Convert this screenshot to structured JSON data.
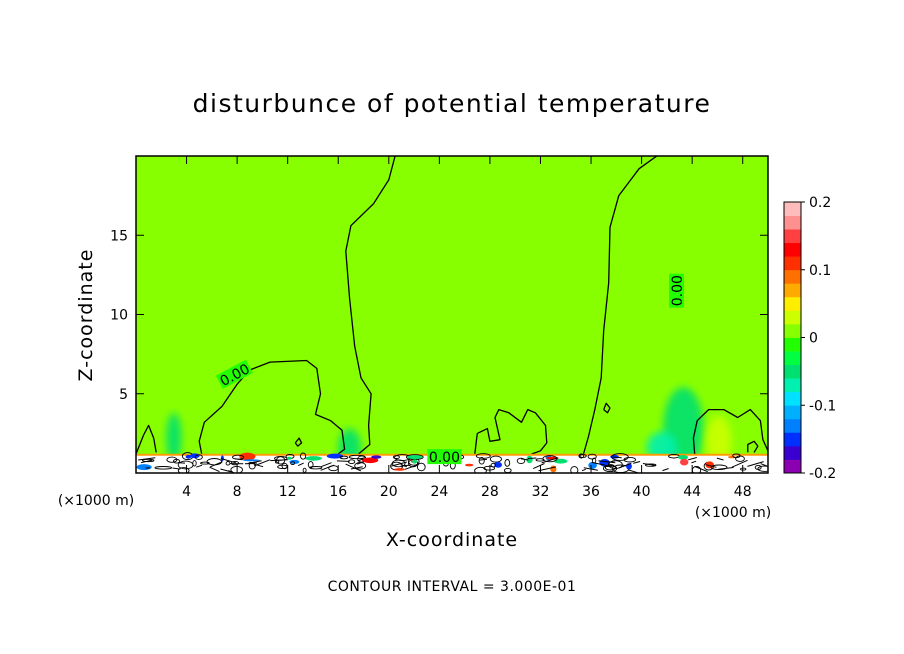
{
  "chart_data": {
    "type": "contour",
    "title": "disturbunce of potential temperature",
    "xlabel": "X-coordinate",
    "ylabel": "Z-coordinate",
    "x_unit": "(×1000 m)",
    "y_unit": "(×1000 m)",
    "xlim": [
      0,
      50
    ],
    "ylim": [
      0,
      20
    ],
    "x_ticks": [
      4,
      8,
      12,
      16,
      20,
      24,
      28,
      32,
      36,
      40,
      44,
      48
    ],
    "y_ticks": [
      5,
      10,
      15
    ],
    "contour_interval_text": "CONTOUR INTERVAL = 3.000E-01",
    "contour_labels": [
      {
        "text": "0.00",
        "x": 7.8,
        "z": 6.2
      },
      {
        "text": "0.00",
        "x": 42.8,
        "z": 11.5
      },
      {
        "text": "0.00",
        "x": 24.4,
        "z": 1.0
      }
    ],
    "colorbar": {
      "range": [
        -0.2,
        0.2
      ],
      "tick_values": [
        0.2,
        0.1,
        0,
        -0.1,
        -0.2
      ],
      "tick_labels": [
        "0.2",
        "0.1",
        "0",
        "-0.1",
        "-0.2"
      ],
      "colors": [
        "#8b00b0",
        "#3a00d0",
        "#0030ff",
        "#0080ff",
        "#00b0ff",
        "#00e0ff",
        "#00f0b0",
        "#00e070",
        "#00ff40",
        "#22ff00",
        "#88ff00",
        "#ccff00",
        "#ffee00",
        "#ffaa00",
        "#ff7000",
        "#ff3000",
        "#ff0000",
        "#ff4040",
        "#ff9090",
        "#ffbcbc"
      ]
    },
    "background_value": 0,
    "zero_contours": [
      {
        "points": [
          [
            0,
            1.2
          ],
          [
            0.6,
            2.4
          ],
          [
            1.0,
            3.0
          ],
          [
            1.4,
            2.2
          ],
          [
            1.6,
            1.3
          ]
        ]
      },
      {
        "points": [
          [
            5.2,
            1.2
          ],
          [
            5.0,
            2.0
          ],
          [
            5.4,
            3.2
          ],
          [
            6.8,
            4.2
          ],
          [
            8.0,
            5.6
          ],
          [
            9.0,
            6.5
          ],
          [
            10.6,
            7.0
          ],
          [
            13.5,
            7.1
          ],
          [
            14.3,
            6.6
          ],
          [
            14.6,
            5.0
          ],
          [
            14.2,
            3.7
          ],
          [
            15.4,
            3.3
          ],
          [
            16.3,
            2.7
          ],
          [
            16.5,
            1.5
          ],
          [
            16.0,
            1.2
          ]
        ]
      },
      {
        "points": [
          [
            17.6,
            1.2
          ],
          [
            18.5,
            1.8
          ],
          [
            18.4,
            3.0
          ],
          [
            18.6,
            5.0
          ],
          [
            17.8,
            6.0
          ],
          [
            17.3,
            8.0
          ],
          [
            16.9,
            11.0
          ],
          [
            16.6,
            14.0
          ],
          [
            17.0,
            15.6
          ],
          [
            18.8,
            17.0
          ],
          [
            20.0,
            18.5
          ],
          [
            20.5,
            20.0
          ]
        ]
      },
      {
        "points": [
          [
            41.2,
            20.0
          ],
          [
            39.8,
            19.2
          ],
          [
            38.2,
            17.5
          ],
          [
            37.5,
            15.5
          ],
          [
            37.4,
            12.0
          ],
          [
            37.0,
            9.0
          ],
          [
            36.8,
            6.0
          ],
          [
            36.3,
            4.0
          ],
          [
            35.8,
            2.3
          ],
          [
            35.4,
            1.2
          ]
        ]
      },
      {
        "points": [
          [
            26.8,
            1.2
          ],
          [
            27.0,
            2.5
          ],
          [
            27.8,
            2.8
          ],
          [
            28.0,
            2.0
          ],
          [
            28.8,
            2.1
          ],
          [
            28.4,
            3.5
          ],
          [
            28.7,
            4.0
          ],
          [
            29.5,
            3.8
          ],
          [
            30.5,
            3.2
          ],
          [
            31.0,
            4.0
          ],
          [
            31.6,
            3.8
          ],
          [
            32.4,
            3.0
          ],
          [
            32.5,
            1.9
          ],
          [
            32.0,
            1.4
          ],
          [
            31.3,
            1.2
          ]
        ]
      },
      {
        "points": [
          [
            44.2,
            1.2
          ],
          [
            44.1,
            2.2
          ],
          [
            44.4,
            3.3
          ],
          [
            45.3,
            4.0
          ],
          [
            46.5,
            4.0
          ],
          [
            47.6,
            3.5
          ],
          [
            48.6,
            4.0
          ],
          [
            49.4,
            3.3
          ],
          [
            49.6,
            2.1
          ],
          [
            50,
            1.4
          ]
        ]
      },
      {
        "points": [
          [
            12.6,
            1.9
          ],
          [
            12.9,
            2.2
          ],
          [
            13.1,
            1.9
          ],
          [
            12.8,
            1.7
          ],
          [
            12.6,
            1.9
          ]
        ]
      },
      {
        "points": [
          [
            37.0,
            4.0
          ],
          [
            37.2,
            4.4
          ],
          [
            37.5,
            4.1
          ],
          [
            37.3,
            3.8
          ],
          [
            37.0,
            4.0
          ]
        ]
      },
      {
        "points": [
          [
            48.4,
            1.3
          ],
          [
            48.4,
            1.8
          ],
          [
            48.9,
            2.0
          ],
          [
            49.2,
            1.7
          ],
          [
            48.9,
            1.3
          ]
        ]
      }
    ],
    "anomalies": [
      {
        "x": 3.0,
        "z": 2.2,
        "rx": 0.6,
        "rz": 1.6,
        "value": -0.04
      },
      {
        "x": 16.9,
        "z": 1.6,
        "rx": 0.9,
        "rz": 1.2,
        "value": -0.05
      },
      {
        "x": 43.3,
        "z": 2.8,
        "rx": 1.6,
        "rz": 2.6,
        "value": -0.04
      },
      {
        "x": 46.1,
        "z": 2.0,
        "rx": 1.0,
        "rz": 1.6,
        "value": 0.03
      },
      {
        "x": 41.6,
        "z": 1.6,
        "rx": 1.2,
        "rz": 1.0,
        "value": -0.07
      }
    ]
  }
}
